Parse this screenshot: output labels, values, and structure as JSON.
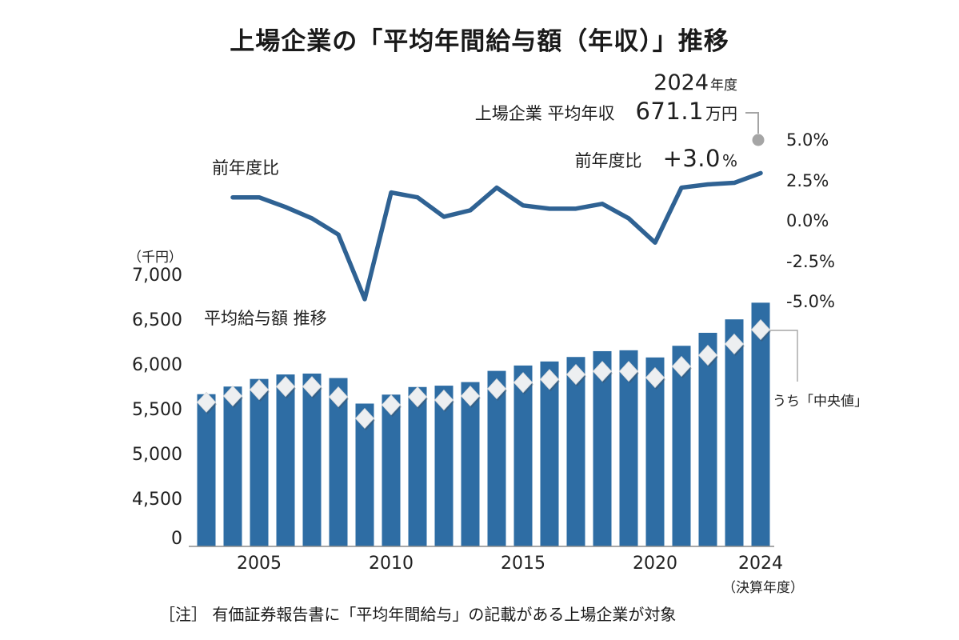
{
  "title": "上場企業の「平均年間給与額（年収）」推移",
  "annotations": {
    "fiscal_year_value": "2024",
    "fiscal_year_suffix": "年度",
    "average_label": "上場企業 平均年収",
    "average_value": "671.1",
    "average_unit": "万円",
    "yoy_label": "前年度比",
    "yoy_value": "+3.0",
    "yoy_unit": "%",
    "median_callout": "うち「中央値」"
  },
  "labels": {
    "line_series": "前年度比",
    "bar_series": "平均給与額  推移",
    "y_axis_unit": "（千円）",
    "x_axis_note": "（決算年度）",
    "footnote": "［注］ 有価証券報告書に「平均年間給与」の記載がある上場企業が対象"
  },
  "colors": {
    "bar": "#2E6DA4",
    "line": "#2F6293",
    "marker_fill": "#EDEFF1",
    "marker_edge": "#D4D7DA",
    "callout_gray": "#A5A5A5",
    "axis_gray": "#8C8C8C",
    "text": "#1F1F1F"
  },
  "chart_data": {
    "type": "combo",
    "subtype": [
      "bar",
      "line"
    ],
    "x_axis": {
      "tick_years": [
        2005,
        2010,
        2015,
        2020,
        2024
      ],
      "axis_note": "（決算年度）"
    },
    "bar_chart": {
      "type": "bar",
      "series_label": "平均給与額  推移",
      "unit": "千円",
      "note": "bars = average annual salary, diamonds = median",
      "y_ticks": [
        {
          "label": "7,000",
          "value": 7000
        },
        {
          "label": "6,500",
          "value": 6500
        },
        {
          "label": "6,000",
          "value": 6000
        },
        {
          "label": "5,500",
          "value": 5500
        },
        {
          "label": "5,000",
          "value": 5000
        },
        {
          "label": "4,500",
          "value": 4500
        },
        {
          "label": "0",
          "value": 0
        }
      ],
      "years": [
        2003,
        2004,
        2005,
        2006,
        2007,
        2008,
        2009,
        2010,
        2011,
        2012,
        2013,
        2014,
        2015,
        2016,
        2017,
        2018,
        2019,
        2020,
        2021,
        2022,
        2023,
        2024
      ],
      "average_salary": [
        5690,
        5775,
        5860,
        5910,
        5920,
        5870,
        5585,
        5685,
        5770,
        5785,
        5825,
        5950,
        6010,
        6055,
        6105,
        6170,
        6180,
        6100,
        6230,
        6375,
        6525,
        6711
      ],
      "median_salary": [
        5600,
        5670,
        5740,
        5775,
        5775,
        5660,
        5420,
        5570,
        5660,
        5625,
        5670,
        5750,
        5820,
        5855,
        5910,
        5945,
        5945,
        5875,
        6000,
        6125,
        6250,
        6410
      ],
      "highlight_2024_average_man_yen": "671.1万円"
    },
    "line_chart": {
      "type": "line",
      "series_label": "前年度比",
      "unit": "%",
      "y_ticks": [
        {
          "label": "5.0%",
          "value": 5.0
        },
        {
          "label": "2.5%",
          "value": 2.5
        },
        {
          "label": "0.0%",
          "value": 0.0
        },
        {
          "label": "-2.5%",
          "value": -2.5
        },
        {
          "label": "-5.0%",
          "value": -5.0
        }
      ],
      "ylim": [
        -5.5,
        5.5
      ],
      "years": [
        2004,
        2005,
        2006,
        2007,
        2008,
        2009,
        2010,
        2011,
        2012,
        2013,
        2014,
        2015,
        2016,
        2017,
        2018,
        2019,
        2020,
        2021,
        2022,
        2023,
        2024
      ],
      "yoy_percent": [
        1.5,
        1.5,
        0.9,
        0.2,
        -0.8,
        -4.8,
        1.8,
        1.5,
        0.3,
        0.7,
        2.1,
        1.0,
        0.8,
        0.8,
        1.1,
        0.2,
        -1.3,
        2.1,
        2.3,
        2.4,
        3.0
      ],
      "highlight_2024_yoy": "+3.0%"
    },
    "grid": false,
    "legend_position": "inline-labels"
  }
}
